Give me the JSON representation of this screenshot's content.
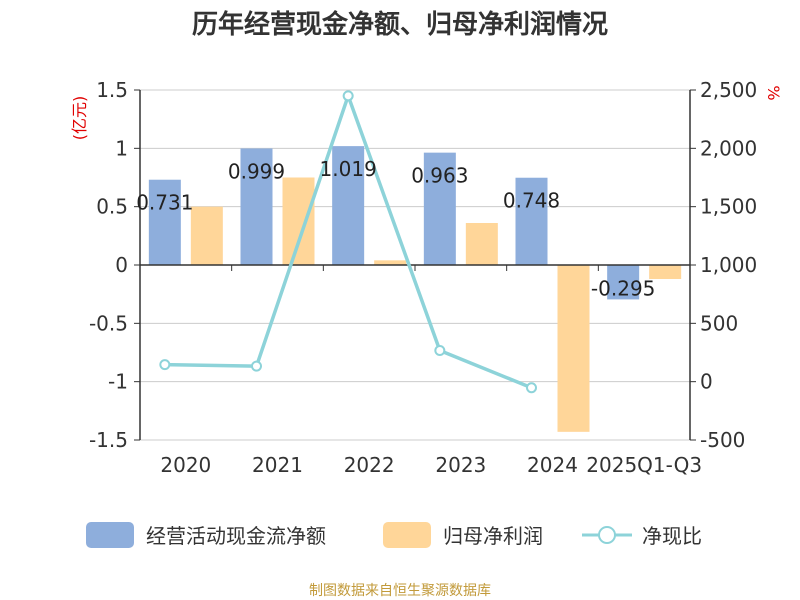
{
  "chart_data": {
    "type": "bar",
    "title": "历年经营现金净额、归母净利润情况",
    "categories": [
      "2020",
      "2021",
      "2022",
      "2023",
      "2024",
      "2025Q1-Q3"
    ],
    "left_axis": {
      "unit": "(亿元)",
      "min": -1.5,
      "max": 1.5,
      "step": 0.5,
      "tick_labels": [
        "1.5",
        "1",
        "0.5",
        "0",
        "-0.5",
        "-1",
        "-1.5"
      ]
    },
    "right_axis": {
      "unit": "%",
      "min": -500,
      "max": 2500,
      "step": 500,
      "tick_labels": [
        "2,500",
        "2,000",
        "1,500",
        "1,000",
        "500",
        "0",
        "-500"
      ]
    },
    "series": [
      {
        "name": "经营活动现金流净额",
        "type": "bar",
        "axis": "left",
        "color": "#8eaedc",
        "values": [
          0.731,
          0.999,
          1.019,
          0.963,
          0.748,
          -0.295
        ],
        "labels": [
          "0.731",
          "0.999",
          "1.019",
          "0.963",
          "0.748",
          "-0.295"
        ]
      },
      {
        "name": "归母净利润",
        "type": "bar",
        "axis": "left",
        "color": "#ffd699",
        "values": [
          0.5,
          0.75,
          0.04,
          0.36,
          -1.43,
          -0.12
        ]
      },
      {
        "name": "净现比",
        "type": "line",
        "axis": "right",
        "color": "#8dd3d9",
        "values": [
          146,
          133,
          2450,
          267,
          -52,
          null
        ]
      }
    ],
    "grid": true,
    "legend_position": "bottom"
  },
  "source_text": "制图数据来自恒生聚源数据库"
}
